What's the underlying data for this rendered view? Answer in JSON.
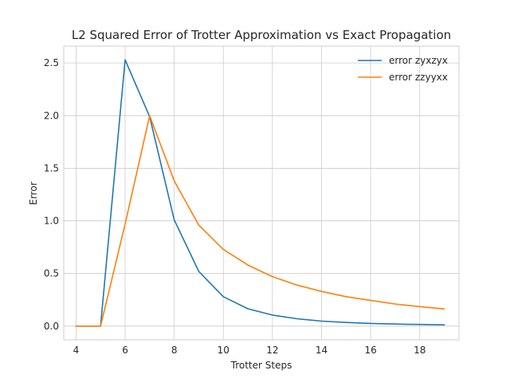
{
  "chart_data": {
    "type": "line",
    "title": "L2 Squared Error of Trotter Approximation vs Exact Propagation",
    "xlabel": "Trotter Steps",
    "ylabel": "Error",
    "xlim": [
      3.5,
      19.6
    ],
    "ylim": [
      -0.13,
      2.66
    ],
    "xticks": [
      4,
      6,
      8,
      10,
      12,
      14,
      16,
      18
    ],
    "xtick_labels": [
      "4",
      "6",
      "8",
      "10",
      "12",
      "14",
      "16",
      "18"
    ],
    "yticks": [
      0.0,
      0.5,
      1.0,
      1.5,
      2.0,
      2.5
    ],
    "ytick_labels": [
      "0.0",
      "0.5",
      "1.0",
      "1.5",
      "2.0",
      "2.5"
    ],
    "grid": true,
    "legend_position": "top-right",
    "x": [
      4,
      5,
      6,
      7,
      8,
      9,
      10,
      11,
      12,
      13,
      14,
      15,
      16,
      17,
      18,
      19
    ],
    "series": [
      {
        "name": "error zyxzyx",
        "color": "#1f77b4",
        "values": [
          0.0,
          0.0,
          2.53,
          1.99,
          1.01,
          0.52,
          0.28,
          0.165,
          0.105,
          0.07,
          0.048,
          0.035,
          0.026,
          0.02,
          0.016,
          0.012
        ]
      },
      {
        "name": "error zzyyxx",
        "color": "#ff7f0e",
        "values": [
          0.0,
          0.0,
          0.97,
          2.0,
          1.38,
          0.96,
          0.73,
          0.58,
          0.47,
          0.39,
          0.33,
          0.28,
          0.245,
          0.21,
          0.185,
          0.163
        ]
      }
    ]
  }
}
